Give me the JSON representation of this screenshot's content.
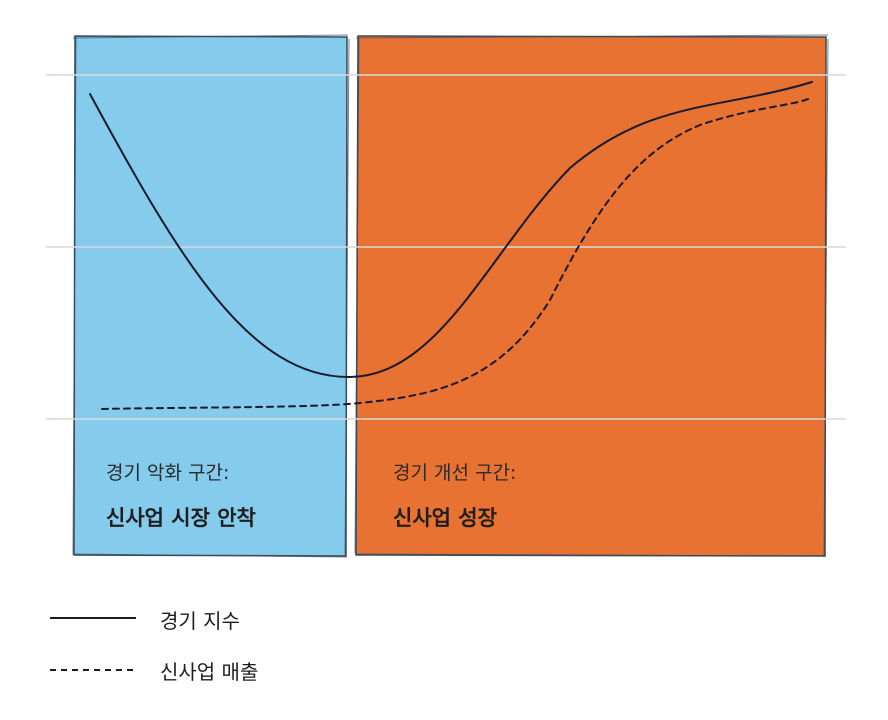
{
  "phases": [
    {
      "sub_label": "경기 악화 구간:",
      "main_label": "신사업 시장 안착",
      "color": "#84cbec"
    },
    {
      "sub_label": "경기 개선 구간:",
      "main_label": "신사업 성장",
      "color": "#e87232"
    }
  ],
  "legend": {
    "items": [
      {
        "label": "경기 지수",
        "style": "solid"
      },
      {
        "label": "신사업 매출",
        "style": "dashed"
      }
    ]
  },
  "colors": {
    "line": "#1a1a2e",
    "gridline": "#d9d9d9",
    "border": "#3a4a5e"
  }
}
